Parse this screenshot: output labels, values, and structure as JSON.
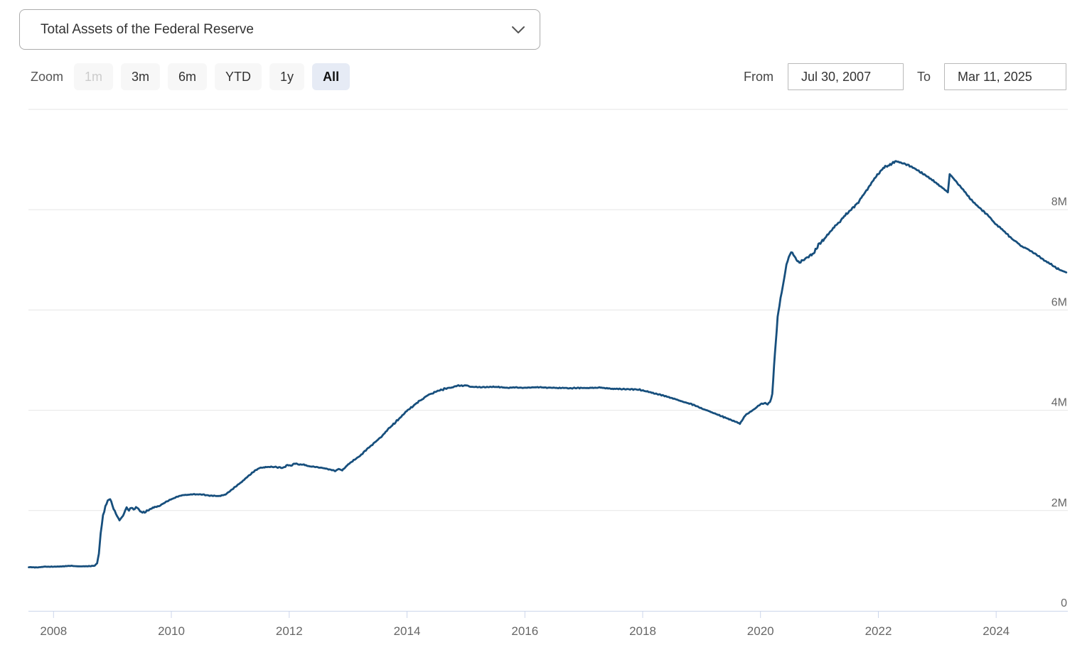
{
  "header": {
    "series_selector_value": "Total Assets of the Federal Reserve",
    "chevron_icon": "chevron-down"
  },
  "range_selector": {
    "zoom_label": "Zoom",
    "buttons": [
      {
        "label": "1m",
        "state": "disabled"
      },
      {
        "label": "3m",
        "state": "normal"
      },
      {
        "label": "6m",
        "state": "normal"
      },
      {
        "label": "YTD",
        "state": "normal"
      },
      {
        "label": "1y",
        "state": "normal"
      },
      {
        "label": "All",
        "state": "selected"
      }
    ],
    "from_label": "From",
    "from_value": "Jul 30, 2007",
    "to_label": "To",
    "to_value": "Mar 11, 2025"
  },
  "chart_data": {
    "type": "line",
    "title": "Total Assets of the Federal Reserve",
    "series_name": "Total Assets of the Federal Reserve",
    "unit": "M (millions of USD millions, i.e. trillions USD)",
    "x_range": [
      2007.58,
      2025.19
    ],
    "y_range": [
      0,
      10
    ],
    "grid": true,
    "legend": "none",
    "line_color": "#174f7d",
    "grid_color": "#e6e6e6",
    "axis_color": "#ccd6eb",
    "label_color": "#666666",
    "x_ticks": [
      {
        "value": 2008,
        "label": "2008"
      },
      {
        "value": 2010,
        "label": "2010"
      },
      {
        "value": 2012,
        "label": "2012"
      },
      {
        "value": 2014,
        "label": "2014"
      },
      {
        "value": 2016,
        "label": "2016"
      },
      {
        "value": 2018,
        "label": "2018"
      },
      {
        "value": 2020,
        "label": "2020"
      },
      {
        "value": 2022,
        "label": "2022"
      },
      {
        "value": 2024,
        "label": "2024"
      }
    ],
    "y_ticks": [
      {
        "value": 0,
        "label": "0"
      },
      {
        "value": 2,
        "label": "2M"
      },
      {
        "value": 4,
        "label": "4M"
      },
      {
        "value": 6,
        "label": "6M"
      },
      {
        "value": 8,
        "label": "8M"
      },
      {
        "value": 10,
        "label": ""
      }
    ],
    "points": [
      [
        2007.58,
        0.87
      ],
      [
        2007.7,
        0.865
      ],
      [
        2007.85,
        0.88
      ],
      [
        2008.0,
        0.88
      ],
      [
        2008.15,
        0.885
      ],
      [
        2008.3,
        0.9
      ],
      [
        2008.45,
        0.885
      ],
      [
        2008.6,
        0.89
      ],
      [
        2008.7,
        0.9
      ],
      [
        2008.74,
        0.95
      ],
      [
        2008.77,
        1.15
      ],
      [
        2008.8,
        1.55
      ],
      [
        2008.84,
        1.9
      ],
      [
        2008.88,
        2.08
      ],
      [
        2008.92,
        2.2
      ],
      [
        2008.96,
        2.24
      ],
      [
        2009.0,
        2.1
      ],
      [
        2009.06,
        1.93
      ],
      [
        2009.12,
        1.8
      ],
      [
        2009.18,
        1.88
      ],
      [
        2009.24,
        2.05
      ],
      [
        2009.28,
        2.0
      ],
      [
        2009.32,
        2.07
      ],
      [
        2009.36,
        2.03
      ],
      [
        2009.42,
        2.07
      ],
      [
        2009.47,
        1.98
      ],
      [
        2009.53,
        1.96
      ],
      [
        2009.6,
        2.0
      ],
      [
        2009.7,
        2.06
      ],
      [
        2009.8,
        2.1
      ],
      [
        2009.9,
        2.16
      ],
      [
        2010.0,
        2.23
      ],
      [
        2010.1,
        2.28
      ],
      [
        2010.2,
        2.31
      ],
      [
        2010.35,
        2.33
      ],
      [
        2010.5,
        2.32
      ],
      [
        2010.65,
        2.3
      ],
      [
        2010.8,
        2.29
      ],
      [
        2010.92,
        2.32
      ],
      [
        2011.0,
        2.39
      ],
      [
        2011.1,
        2.49
      ],
      [
        2011.2,
        2.58
      ],
      [
        2011.3,
        2.68
      ],
      [
        2011.4,
        2.78
      ],
      [
        2011.5,
        2.85
      ],
      [
        2011.6,
        2.87
      ],
      [
        2011.75,
        2.87
      ],
      [
        2011.9,
        2.85
      ],
      [
        2011.97,
        2.91
      ],
      [
        2012.03,
        2.89
      ],
      [
        2012.1,
        2.94
      ],
      [
        2012.17,
        2.91
      ],
      [
        2012.25,
        2.92
      ],
      [
        2012.35,
        2.88
      ],
      [
        2012.5,
        2.86
      ],
      [
        2012.65,
        2.83
      ],
      [
        2012.78,
        2.79
      ],
      [
        2012.84,
        2.83
      ],
      [
        2012.9,
        2.8
      ],
      [
        2013.0,
        2.92
      ],
      [
        2013.15,
        3.05
      ],
      [
        2013.3,
        3.2
      ],
      [
        2013.45,
        3.35
      ],
      [
        2013.6,
        3.52
      ],
      [
        2013.75,
        3.7
      ],
      [
        2013.9,
        3.88
      ],
      [
        2014.05,
        4.03
      ],
      [
        2014.2,
        4.18
      ],
      [
        2014.35,
        4.3
      ],
      [
        2014.5,
        4.38
      ],
      [
        2014.65,
        4.43
      ],
      [
        2014.8,
        4.47
      ],
      [
        2015.0,
        4.5
      ],
      [
        2015.08,
        4.47
      ],
      [
        2015.25,
        4.46
      ],
      [
        2015.5,
        4.47
      ],
      [
        2015.75,
        4.45
      ],
      [
        2016.0,
        4.45
      ],
      [
        2016.25,
        4.46
      ],
      [
        2016.5,
        4.45
      ],
      [
        2016.75,
        4.44
      ],
      [
        2017.0,
        4.44
      ],
      [
        2017.25,
        4.45
      ],
      [
        2017.5,
        4.43
      ],
      [
        2017.75,
        4.42
      ],
      [
        2017.95,
        4.41
      ],
      [
        2018.1,
        4.37
      ],
      [
        2018.3,
        4.31
      ],
      [
        2018.5,
        4.24
      ],
      [
        2018.7,
        4.17
      ],
      [
        2018.9,
        4.09
      ],
      [
        2019.1,
        3.99
      ],
      [
        2019.3,
        3.9
      ],
      [
        2019.45,
        3.83
      ],
      [
        2019.58,
        3.77
      ],
      [
        2019.65,
        3.73
      ],
      [
        2019.7,
        3.82
      ],
      [
        2019.74,
        3.9
      ],
      [
        2019.78,
        3.93
      ],
      [
        2019.84,
        3.98
      ],
      [
        2019.9,
        4.03
      ],
      [
        2019.96,
        4.09
      ],
      [
        2020.02,
        4.13
      ],
      [
        2020.08,
        4.14
      ],
      [
        2020.12,
        4.12
      ],
      [
        2020.16,
        4.16
      ],
      [
        2020.2,
        4.31
      ],
      [
        2020.23,
        4.9
      ],
      [
        2020.26,
        5.35
      ],
      [
        2020.29,
        5.85
      ],
      [
        2020.32,
        6.08
      ],
      [
        2020.36,
        6.35
      ],
      [
        2020.4,
        6.6
      ],
      [
        2020.44,
        6.9
      ],
      [
        2020.48,
        7.05
      ],
      [
        2020.52,
        7.16
      ],
      [
        2020.56,
        7.1
      ],
      [
        2020.61,
        7.0
      ],
      [
        2020.66,
        6.94
      ],
      [
        2020.72,
        6.99
      ],
      [
        2020.8,
        7.05
      ],
      [
        2020.9,
        7.14
      ],
      [
        2021.0,
        7.32
      ],
      [
        2021.1,
        7.44
      ],
      [
        2021.2,
        7.57
      ],
      [
        2021.3,
        7.7
      ],
      [
        2021.42,
        7.86
      ],
      [
        2021.54,
        8.0
      ],
      [
        2021.66,
        8.16
      ],
      [
        2021.78,
        8.35
      ],
      [
        2021.9,
        8.56
      ],
      [
        2022.0,
        8.73
      ],
      [
        2022.1,
        8.84
      ],
      [
        2022.2,
        8.9
      ],
      [
        2022.3,
        8.96
      ],
      [
        2022.38,
        8.94
      ],
      [
        2022.46,
        8.91
      ],
      [
        2022.55,
        8.86
      ],
      [
        2022.65,
        8.79
      ],
      [
        2022.75,
        8.72
      ],
      [
        2022.85,
        8.64
      ],
      [
        2022.95,
        8.56
      ],
      [
        2023.05,
        8.47
      ],
      [
        2023.13,
        8.4
      ],
      [
        2023.18,
        8.35
      ],
      [
        2023.21,
        8.71
      ],
      [
        2023.26,
        8.64
      ],
      [
        2023.33,
        8.54
      ],
      [
        2023.42,
        8.42
      ],
      [
        2023.5,
        8.3
      ],
      [
        2023.6,
        8.17
      ],
      [
        2023.7,
        8.06
      ],
      [
        2023.8,
        7.95
      ],
      [
        2023.9,
        7.84
      ],
      [
        2024.0,
        7.71
      ],
      [
        2024.1,
        7.6
      ],
      [
        2024.2,
        7.49
      ],
      [
        2024.3,
        7.39
      ],
      [
        2024.42,
        7.28
      ],
      [
        2024.54,
        7.2
      ],
      [
        2024.66,
        7.12
      ],
      [
        2024.78,
        7.02
      ],
      [
        2024.9,
        6.93
      ],
      [
        2025.0,
        6.85
      ],
      [
        2025.1,
        6.79
      ],
      [
        2025.19,
        6.75
      ]
    ]
  }
}
